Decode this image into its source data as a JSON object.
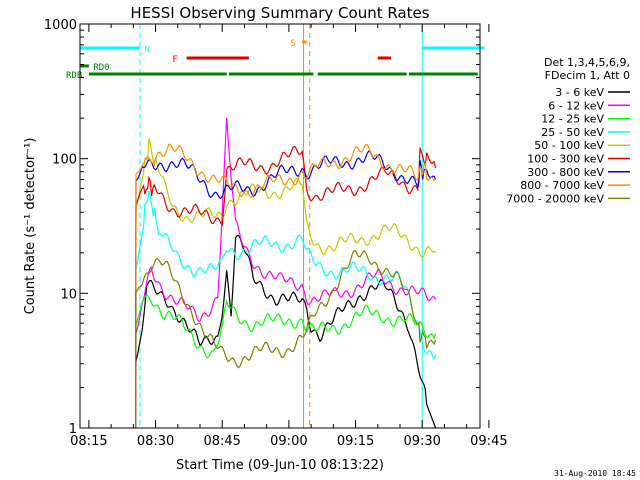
{
  "chart_data": {
    "type": "line",
    "title": "HESSI Observing Summary Count Rates",
    "xlabel": "Start Time (09-Jun-10 08:13:22)",
    "ylabel": "Count Rate (s⁻¹ detector⁻¹)",
    "ylog": true,
    "ylim": [
      1,
      1000
    ],
    "xlim_min": [
      13,
      103
    ],
    "x_ticks": [
      "08:15",
      "08:30",
      "08:45",
      "09:00",
      "09:15",
      "09:30",
      "09:45"
    ],
    "x_tick_min": [
      15,
      30,
      45,
      60,
      75,
      90,
      105
    ],
    "y_ticks": [
      "1",
      "10",
      "100",
      "1000"
    ],
    "y_tick_vals": [
      1,
      10,
      100,
      1000
    ],
    "timestamp": "31-Aug-2010 18:45",
    "legend_header": [
      "Det 1,3,4,5,6,9,",
      "FDecim 1, Att 0"
    ],
    "series": [
      {
        "name": "3 - 6 keV",
        "color": "#000000",
        "points": [
          [
            25.5,
            1
          ],
          [
            25.6,
            3
          ],
          [
            27,
            5
          ],
          [
            28,
            11
          ],
          [
            30,
            10
          ],
          [
            33,
            9
          ],
          [
            36,
            6.5
          ],
          [
            38,
            5
          ],
          [
            40,
            4
          ],
          [
            42,
            4.5
          ],
          [
            44,
            5
          ],
          [
            45,
            8
          ],
          [
            46,
            15
          ],
          [
            47,
            7
          ],
          [
            48,
            25
          ],
          [
            50,
            20
          ],
          [
            52,
            13
          ],
          [
            54,
            12
          ],
          [
            57,
            9
          ],
          [
            60,
            8.5
          ],
          [
            63,
            9
          ],
          [
            64,
            8
          ],
          [
            65,
            6
          ],
          [
            67,
            5
          ],
          [
            70,
            6
          ],
          [
            73,
            8
          ],
          [
            76,
            10
          ],
          [
            79,
            11
          ],
          [
            82,
            10.5
          ],
          [
            85,
            8
          ],
          [
            87,
            6
          ],
          [
            89,
            3
          ],
          [
            91,
            1.5
          ],
          [
            93,
            1
          ]
        ]
      },
      {
        "name": "6 - 12 keV",
        "color": "#ff00ff",
        "points": [
          [
            25.5,
            1
          ],
          [
            25.6,
            5
          ],
          [
            27,
            8
          ],
          [
            29,
            15
          ],
          [
            31,
            12
          ],
          [
            33,
            10
          ],
          [
            36,
            8
          ],
          [
            38,
            7
          ],
          [
            40,
            6.5
          ],
          [
            42,
            8
          ],
          [
            44,
            10
          ],
          [
            45,
            40
          ],
          [
            46,
            180
          ],
          [
            47,
            70
          ],
          [
            48,
            30
          ],
          [
            50,
            22
          ],
          [
            52,
            18
          ],
          [
            55,
            14
          ],
          [
            58,
            12
          ],
          [
            60,
            12
          ],
          [
            63,
            12
          ],
          [
            64,
            10
          ],
          [
            65,
            9
          ],
          [
            68,
            9
          ],
          [
            71,
            10
          ],
          [
            74,
            11
          ],
          [
            77,
            12
          ],
          [
            80,
            13
          ],
          [
            83,
            12
          ],
          [
            86,
            11
          ],
          [
            88,
            10
          ],
          [
            91,
            9
          ],
          [
            93,
            9
          ]
        ]
      },
      {
        "name": "12 - 25 keV",
        "color": "#00ff00",
        "points": [
          [
            25.5,
            1
          ],
          [
            25.6,
            6
          ],
          [
            27,
            9
          ],
          [
            29,
            10
          ],
          [
            32,
            7
          ],
          [
            35,
            6
          ],
          [
            38,
            5
          ],
          [
            41,
            4
          ],
          [
            43,
            3.5
          ],
          [
            45,
            5
          ],
          [
            46,
            8
          ],
          [
            48,
            7
          ],
          [
            52,
            6
          ],
          [
            56,
            6
          ],
          [
            60,
            6.5
          ],
          [
            63,
            6.5
          ],
          [
            64,
            5.5
          ],
          [
            66,
            5
          ],
          [
            69,
            5.5
          ],
          [
            72,
            6
          ],
          [
            75,
            6.5
          ],
          [
            78,
            7
          ],
          [
            81,
            7
          ],
          [
            84,
            6.5
          ],
          [
            87,
            6
          ],
          [
            90,
            5.5
          ],
          [
            93,
            5
          ]
        ]
      },
      {
        "name": "25 - 50 keV",
        "color": "#00ffff",
        "points": [
          [
            25.5,
            1
          ],
          [
            25.6,
            15
          ],
          [
            27,
            30
          ],
          [
            28.5,
            60
          ],
          [
            29.5,
            40
          ],
          [
            31,
            28
          ],
          [
            33,
            22
          ],
          [
            35,
            18
          ],
          [
            38,
            16
          ],
          [
            41,
            15
          ],
          [
            43,
            14
          ],
          [
            45,
            16
          ],
          [
            46,
            22
          ],
          [
            48,
            21
          ],
          [
            52,
            22
          ],
          [
            56,
            23
          ],
          [
            60,
            24
          ],
          [
            63,
            25
          ],
          [
            64,
            19
          ],
          [
            66,
            16
          ],
          [
            70,
            15
          ],
          [
            74,
            14.5
          ],
          [
            78,
            14
          ],
          [
            82,
            13.5
          ],
          [
            85,
            12
          ],
          [
            87,
            9
          ],
          [
            89,
            6
          ],
          [
            91,
            4
          ],
          [
            93,
            3.5
          ]
        ]
      },
      {
        "name": "50 - 100 keV",
        "color": "#c8c800",
        "points": [
          [
            25.5,
            1
          ],
          [
            25.6,
            40
          ],
          [
            27,
            70
          ],
          [
            28.5,
            130
          ],
          [
            30,
            90
          ],
          [
            32,
            60
          ],
          [
            34,
            45
          ],
          [
            37,
            38
          ],
          [
            40,
            36
          ],
          [
            43,
            37
          ],
          [
            45,
            39
          ],
          [
            46,
            50
          ],
          [
            48,
            52
          ],
          [
            52,
            55
          ],
          [
            56,
            58
          ],
          [
            60,
            60
          ],
          [
            63,
            62
          ],
          [
            64,
            30
          ],
          [
            66,
            24
          ],
          [
            70,
            22
          ],
          [
            74,
            24
          ],
          [
            78,
            27
          ],
          [
            82,
            29
          ],
          [
            85,
            27
          ],
          [
            88,
            24
          ],
          [
            90,
            21
          ],
          [
            93,
            20
          ]
        ]
      },
      {
        "name": "100 - 300 keV",
        "color": "#e00000",
        "points": [
          [
            25.5,
            1
          ],
          [
            25.6,
            45
          ],
          [
            27,
            55
          ],
          [
            28.5,
            65
          ],
          [
            30,
            58
          ],
          [
            32,
            50
          ],
          [
            34,
            44
          ],
          [
            37,
            40
          ],
          [
            40,
            38
          ],
          [
            43,
            37
          ],
          [
            45,
            38
          ],
          [
            46,
            85
          ],
          [
            48,
            86
          ],
          [
            52,
            88
          ],
          [
            56,
            92
          ],
          [
            60,
            100
          ],
          [
            63,
            115
          ],
          [
            64,
            60
          ],
          [
            66,
            55
          ],
          [
            70,
            55
          ],
          [
            74,
            60
          ],
          [
            78,
            68
          ],
          [
            82,
            75
          ],
          [
            85,
            72
          ],
          [
            87,
            65
          ],
          [
            89,
            60
          ],
          [
            89.5,
            110
          ],
          [
            91,
            95
          ],
          [
            93,
            85
          ]
        ]
      },
      {
        "name": "300 - 800 keV",
        "color": "#0000ff",
        "points": [
          [
            25.5,
            1
          ],
          [
            25.6,
            70
          ],
          [
            27,
            82
          ],
          [
            29,
            90
          ],
          [
            31,
            95
          ],
          [
            33,
            95
          ],
          [
            35,
            90
          ],
          [
            38,
            80
          ],
          [
            41,
            68
          ],
          [
            43,
            58
          ],
          [
            45,
            55
          ],
          [
            46,
            56
          ],
          [
            48,
            58
          ],
          [
            51,
            60
          ],
          [
            54,
            65
          ],
          [
            57,
            72
          ],
          [
            60,
            80
          ],
          [
            63,
            88
          ],
          [
            64,
            82
          ],
          [
            66,
            85
          ],
          [
            69,
            90
          ],
          [
            72,
            96
          ],
          [
            75,
            100
          ],
          [
            78,
            98
          ],
          [
            81,
            92
          ],
          [
            84,
            82
          ],
          [
            87,
            70
          ],
          [
            89,
            60
          ],
          [
            89.5,
            85
          ],
          [
            91,
            78
          ],
          [
            93,
            70
          ]
        ]
      },
      {
        "name": "800 - 7000 keV",
        "color": "#ff8c00",
        "points": [
          [
            25.5,
            1
          ],
          [
            25.6,
            80
          ],
          [
            27,
            95
          ],
          [
            29,
            108
          ],
          [
            31,
            115
          ],
          [
            33,
            115
          ],
          [
            35,
            108
          ],
          [
            38,
            95
          ],
          [
            41,
            80
          ],
          [
            43,
            70
          ],
          [
            45,
            64
          ],
          [
            46,
            62
          ],
          [
            48,
            60
          ],
          [
            51,
            60
          ],
          [
            54,
            62
          ],
          [
            57,
            66
          ],
          [
            60,
            72
          ],
          [
            63,
            80
          ],
          [
            64,
            75
          ],
          [
            66,
            82
          ],
          [
            69,
            92
          ],
          [
            72,
            102
          ],
          [
            75,
            110
          ],
          [
            78,
            108
          ],
          [
            81,
            98
          ],
          [
            84,
            88
          ],
          [
            87,
            76
          ],
          [
            89,
            68
          ],
          [
            89.5,
            88
          ],
          [
            91,
            80
          ],
          [
            93,
            72
          ]
        ]
      },
      {
        "name": "7000 - 20000 keV",
        "color": "#808000",
        "points": [
          [
            25.5,
            1
          ],
          [
            25.6,
            10
          ],
          [
            27,
            13
          ],
          [
            29,
            17
          ],
          [
            31,
            17
          ],
          [
            33,
            14
          ],
          [
            35,
            11
          ],
          [
            38,
            8
          ],
          [
            41,
            5
          ],
          [
            43,
            4
          ],
          [
            45,
            3.5
          ],
          [
            48,
            3.3
          ],
          [
            52,
            3.5
          ],
          [
            56,
            3.8
          ],
          [
            60,
            4
          ],
          [
            63,
            4.5
          ],
          [
            64,
            5
          ],
          [
            66,
            7
          ],
          [
            69,
            10
          ],
          [
            72,
            14
          ],
          [
            75,
            18
          ],
          [
            78,
            19
          ],
          [
            81,
            16
          ],
          [
            84,
            13
          ],
          [
            87,
            9
          ],
          [
            89,
            6
          ],
          [
            89.5,
            5
          ],
          [
            91,
            4.5
          ],
          [
            93,
            4.5
          ]
        ]
      }
    ],
    "flag_bars": [
      {
        "label": "N",
        "color": "#00ffff",
        "segments": [
          [
            13,
            26.5
          ],
          [
            90,
            104
          ]
        ]
      },
      {
        "label": "F",
        "color": "#e00000",
        "segments": [
          [
            37,
            51
          ]
        ]
      },
      {
        "label": "S",
        "color": "#ff8c00",
        "segments": [
          [
            63,
            64
          ]
        ]
      },
      {
        "label": "",
        "color": "#e00000",
        "segments": [
          [
            80,
            83
          ]
        ]
      },
      {
        "label": "RD0",
        "color": "#008000",
        "segments": [
          [
            13,
            15
          ]
        ]
      },
      {
        "label": "RDB",
        "color": "#008000",
        "segments": [
          [
            15,
            46
          ],
          [
            46.5,
            65.5
          ],
          [
            66.5,
            86.5
          ],
          [
            87,
            102.5
          ]
        ]
      }
    ],
    "markers": [
      {
        "min": 26.5,
        "color": "#00ffff",
        "dashed": true
      },
      {
        "min": 90,
        "color": "#00ffff",
        "dashed": false
      },
      {
        "min": 104.5,
        "color": "#00ffff",
        "dashed": true
      },
      {
        "min": 63.3,
        "color": "#ff8c00",
        "dashed": false
      },
      {
        "min": 64.7,
        "color": "#ff8c00",
        "dashed": true
      }
    ]
  }
}
